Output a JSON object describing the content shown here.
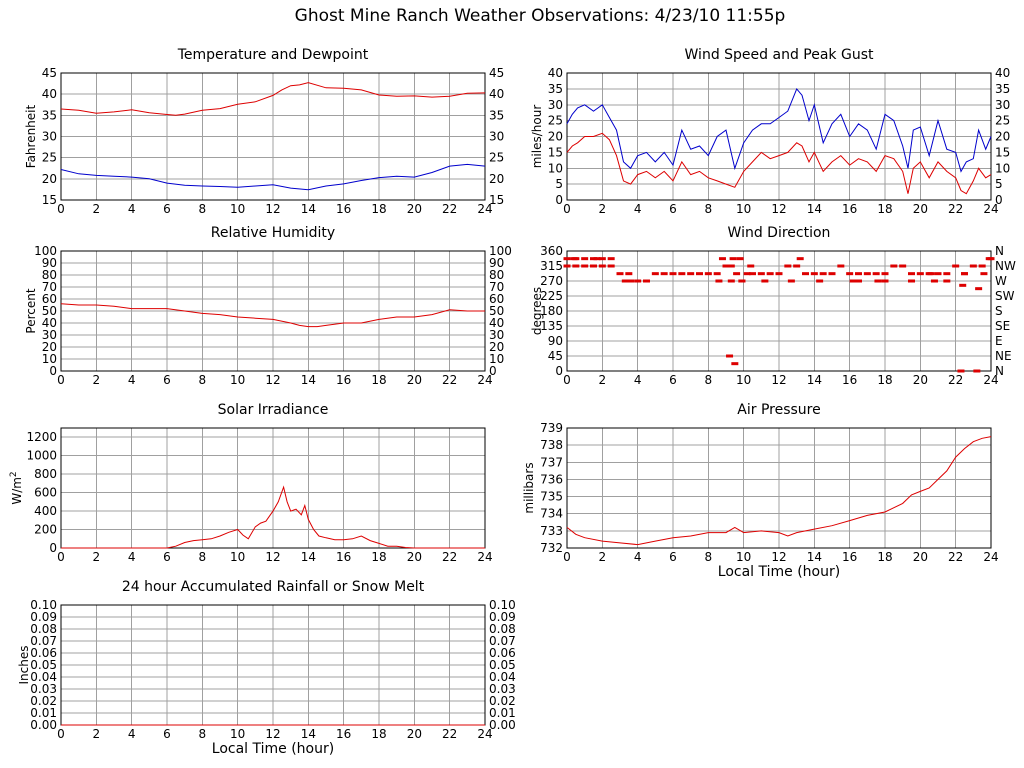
{
  "page": {
    "title": "Ghost Mine Ranch Weather Observations: 4/23/10 11:55p",
    "colors": {
      "primary_series": "#dd0000",
      "secondary_series": "#0000cc",
      "grid": "#a0a0a0"
    }
  },
  "chart_data": [
    {
      "id": "temp",
      "type": "line",
      "title": "Temperature and Dewpoint",
      "xlabel": "",
      "ylabel": "Fahrenheit",
      "xlim": [
        0,
        24
      ],
      "ylim": [
        15,
        45
      ],
      "xticks": [
        0,
        2,
        4,
        6,
        8,
        10,
        12,
        14,
        16,
        18,
        20,
        22,
        24
      ],
      "yticks": [
        15,
        20,
        25,
        30,
        35,
        40,
        45
      ],
      "right_ticks": [
        "15",
        "20",
        "25",
        "30",
        "35",
        "40",
        "45"
      ],
      "series": [
        {
          "name": "",
          "color": "#dd0000",
          "x": [
            0,
            1,
            2,
            3,
            4,
            5,
            6,
            6.5,
            7,
            8,
            9,
            10,
            11,
            12,
            12.5,
            13,
            13.5,
            14,
            15,
            16,
            17,
            18,
            19,
            20,
            21,
            22,
            23,
            24
          ],
          "y": [
            36.5,
            36.2,
            35.5,
            35.8,
            36.3,
            35.6,
            35.2,
            35.0,
            35.3,
            36.2,
            36.6,
            37.6,
            38.2,
            39.7,
            41.0,
            42.0,
            42.2,
            42.7,
            41.5,
            41.4,
            41.0,
            39.8,
            39.5,
            39.6,
            39.3,
            39.5,
            40.2,
            40.3
          ]
        },
        {
          "name": "",
          "color": "#0000cc",
          "x": [
            0,
            1,
            2,
            3,
            4,
            5,
            6,
            7,
            8,
            9,
            10,
            11,
            12,
            13,
            14,
            15,
            16,
            17,
            18,
            19,
            20,
            21,
            22,
            23,
            24
          ],
          "y": [
            22.2,
            21.2,
            20.8,
            20.6,
            20.4,
            20.0,
            19.0,
            18.5,
            18.3,
            18.2,
            18.0,
            18.3,
            18.6,
            17.8,
            17.4,
            18.3,
            18.8,
            19.6,
            20.3,
            20.6,
            20.4,
            21.5,
            23.0,
            23.4,
            23.0
          ]
        }
      ]
    },
    {
      "id": "wind",
      "type": "line",
      "title": "Wind Speed and Peak Gust",
      "xlabel": "",
      "ylabel": "miles/hour",
      "xlim": [
        0,
        24
      ],
      "ylim": [
        0,
        40
      ],
      "xticks": [
        0,
        2,
        4,
        6,
        8,
        10,
        12,
        14,
        16,
        18,
        20,
        22,
        24
      ],
      "yticks": [
        0,
        5,
        10,
        15,
        20,
        25,
        30,
        35,
        40
      ],
      "right_ticks": [
        "0",
        "5",
        "10",
        "15",
        "20",
        "25",
        "30",
        "35",
        "40"
      ],
      "series": [
        {
          "name": "",
          "color": "#0000cc",
          "x": [
            0,
            0.3,
            0.6,
            1,
            1.5,
            2,
            2.4,
            2.8,
            3.2,
            3.6,
            4,
            4.5,
            5,
            5.5,
            6,
            6.5,
            7,
            7.5,
            8,
            8.5,
            9,
            9.5,
            10,
            10.5,
            11,
            11.5,
            12,
            12.5,
            13,
            13.3,
            13.7,
            14,
            14.5,
            15,
            15.5,
            16,
            16.5,
            17,
            17.5,
            18,
            18.5,
            19,
            19.3,
            19.6,
            20,
            20.5,
            21,
            21.5,
            22,
            22.3,
            22.6,
            23,
            23.3,
            23.7,
            24
          ],
          "y": [
            24,
            27,
            29,
            30,
            28,
            30,
            26,
            22,
            12,
            10,
            14,
            15,
            12,
            15,
            11,
            22,
            16,
            17,
            14,
            20,
            22,
            10,
            18,
            22,
            24,
            24,
            26,
            28,
            35,
            33,
            25,
            30,
            18,
            24,
            27,
            20,
            24,
            22,
            16,
            27,
            25,
            17,
            10,
            22,
            23,
            14,
            25,
            16,
            15,
            9,
            12,
            13,
            22,
            16,
            20
          ]
        },
        {
          "name": "",
          "color": "#dd0000",
          "x": [
            0,
            0.3,
            0.6,
            1,
            1.5,
            2,
            2.4,
            2.8,
            3.2,
            3.6,
            4,
            4.5,
            5,
            5.5,
            6,
            6.5,
            7,
            7.5,
            8,
            8.5,
            9,
            9.5,
            10,
            10.5,
            11,
            11.5,
            12,
            12.5,
            13,
            13.3,
            13.7,
            14,
            14.5,
            15,
            15.5,
            16,
            16.5,
            17,
            17.5,
            18,
            18.5,
            19,
            19.3,
            19.6,
            20,
            20.5,
            21,
            21.5,
            22,
            22.3,
            22.6,
            23,
            23.3,
            23.7,
            24
          ],
          "y": [
            15,
            17,
            18,
            20,
            20,
            21,
            19,
            14,
            6,
            5,
            8,
            9,
            7,
            9,
            6,
            12,
            8,
            9,
            7,
            6,
            5,
            4,
            9,
            12,
            15,
            13,
            14,
            15,
            18,
            17,
            12,
            15,
            9,
            12,
            14,
            11,
            13,
            12,
            9,
            14,
            13,
            9,
            2,
            10,
            12,
            7,
            12,
            9,
            7,
            3,
            2,
            6,
            10,
            7,
            8
          ]
        }
      ]
    },
    {
      "id": "rh",
      "type": "line",
      "title": "Relative Humidity",
      "xlabel": "",
      "ylabel": "Percent",
      "xlim": [
        0,
        24
      ],
      "ylim": [
        0,
        100
      ],
      "xticks": [
        0,
        2,
        4,
        6,
        8,
        10,
        12,
        14,
        16,
        18,
        20,
        22,
        24
      ],
      "yticks": [
        0,
        10,
        20,
        30,
        40,
        50,
        60,
        70,
        80,
        90,
        100
      ],
      "right_ticks": [
        "0",
        "10",
        "20",
        "30",
        "40",
        "50",
        "60",
        "70",
        "80",
        "90",
        "100"
      ],
      "series": [
        {
          "name": "",
          "color": "#dd0000",
          "x": [
            0,
            1,
            2,
            3,
            4,
            5,
            6,
            7,
            8,
            9,
            10,
            11,
            12,
            13,
            13.5,
            14,
            14.5,
            15,
            16,
            17,
            18,
            19,
            20,
            21,
            22,
            23,
            24
          ],
          "y": [
            56,
            55,
            55,
            54,
            52,
            52,
            52,
            50,
            48,
            47,
            45,
            44,
            43,
            40,
            38,
            37,
            37,
            38,
            40,
            40,
            43,
            45,
            45,
            47,
            51,
            50,
            50
          ]
        }
      ]
    },
    {
      "id": "wdir",
      "type": "scatter",
      "title": "Wind Direction",
      "xlabel": "",
      "ylabel": "degrees",
      "xlim": [
        0,
        24
      ],
      "ylim": [
        0,
        360
      ],
      "xticks": [
        0,
        2,
        4,
        6,
        8,
        10,
        12,
        14,
        16,
        18,
        20,
        22,
        24
      ],
      "yticks": [
        0,
        45,
        90,
        135,
        180,
        225,
        270,
        315,
        360
      ],
      "right_ticks": [
        "N",
        "NE",
        "E",
        "SE",
        "S",
        "SW",
        "W",
        "NW",
        "N"
      ],
      "series": [
        {
          "name": "",
          "color": "#dd0000",
          "x": [
            0,
            0.5,
            1,
            1.5,
            2,
            2.5,
            0,
            0.5,
            1,
            1.5,
            2,
            2.5,
            3,
            3.5,
            4,
            4.5,
            5,
            5.5,
            6,
            6.5,
            7,
            7.5,
            8,
            8.5,
            9,
            9.3,
            9.6,
            9.9,
            10.2,
            10.5,
            11,
            11.5,
            12,
            12.5,
            13,
            13.5,
            14,
            14.5,
            15,
            15.5,
            16,
            16.5,
            17,
            17.5,
            18,
            18.5,
            19,
            19.5,
            20,
            20.5,
            21,
            21.5,
            22,
            22.5,
            23,
            23.5,
            24,
            8.8,
            9.3,
            9.9,
            10.4,
            12.7,
            14.3,
            16.2,
            18,
            20.8,
            21.5,
            22.4,
            23.3,
            9.2,
            9.5,
            22.3,
            23.2,
            3.3,
            3.6,
            8.6,
            9.4,
            11.2,
            16.5,
            17.6,
            19.5,
            20.6,
            22.5,
            23.6,
            0.4,
            1.7,
            23.9,
            13.2,
            9.8
          ],
          "y": [
            337,
            337,
            337,
            337,
            337,
            337,
            315,
            315,
            315,
            315,
            315,
            315,
            292,
            292,
            270,
            270,
            292,
            292,
            292,
            292,
            292,
            292,
            292,
            292,
            315,
            315,
            292,
            270,
            292,
            292,
            292,
            292,
            292,
            315,
            315,
            292,
            292,
            292,
            292,
            315,
            292,
            292,
            292,
            292,
            292,
            315,
            315,
            292,
            292,
            292,
            292,
            292,
            315,
            292,
            315,
            315,
            337,
            337,
            270,
            270,
            315,
            270,
            270,
            270,
            270,
            270,
            270,
            257,
            247,
            45,
            22,
            0,
            0,
            270,
            270,
            270,
            337,
            270,
            270,
            270,
            270,
            292,
            292,
            292,
            337,
            337,
            337,
            337,
            337
          ]
        }
      ]
    },
    {
      "id": "solar",
      "type": "line",
      "title": "Solar Irradiance",
      "xlabel": "",
      "ylabel": "W/m2",
      "xlim": [
        0,
        24
      ],
      "ylim": [
        0,
        1300
      ],
      "xticks": [
        0,
        2,
        4,
        6,
        8,
        10,
        12,
        14,
        16,
        18,
        20,
        22,
        24
      ],
      "yticks": [
        0,
        200,
        400,
        600,
        800,
        1000,
        1200
      ],
      "series": [
        {
          "name": "",
          "color": "#dd0000",
          "x": [
            0,
            6,
            6.5,
            7,
            7.5,
            8,
            8.5,
            9,
            9.5,
            10,
            10.3,
            10.6,
            11,
            11.3,
            11.6,
            12,
            12.3,
            12.6,
            12.8,
            13,
            13.3,
            13.6,
            13.8,
            14,
            14.3,
            14.6,
            15,
            15.5,
            16,
            16.5,
            17,
            17.5,
            18,
            18.5,
            19,
            19.5,
            20,
            21,
            22,
            23,
            24
          ],
          "y": [
            0,
            0,
            20,
            60,
            80,
            90,
            100,
            130,
            170,
            200,
            140,
            100,
            230,
            270,
            290,
            400,
            500,
            660,
            500,
            400,
            420,
            360,
            460,
            310,
            200,
            130,
            110,
            90,
            90,
            100,
            130,
            80,
            50,
            20,
            20,
            5,
            0,
            0,
            0,
            0,
            0
          ]
        }
      ]
    },
    {
      "id": "pressure",
      "type": "line",
      "title": "Air Pressure",
      "xlabel": "Local Time (hour)",
      "ylabel": "millibars",
      "xlim": [
        0,
        24
      ],
      "ylim": [
        732,
        739
      ],
      "xticks": [
        0,
        2,
        4,
        6,
        8,
        10,
        12,
        14,
        16,
        18,
        20,
        22,
        24
      ],
      "yticks": [
        732,
        733,
        734,
        735,
        736,
        737,
        738,
        739
      ],
      "series": [
        {
          "name": "",
          "color": "#dd0000",
          "x": [
            0,
            0.5,
            1,
            2,
            3,
            4,
            5,
            6,
            7,
            8,
            9,
            9.5,
            10,
            11,
            12,
            12.5,
            13,
            14,
            15,
            16,
            17,
            18,
            19,
            19.5,
            20,
            20.5,
            21,
            21.5,
            22,
            22.5,
            23,
            23.5,
            24
          ],
          "y": [
            733.2,
            732.8,
            732.6,
            732.4,
            732.3,
            732.2,
            732.4,
            732.6,
            732.7,
            732.9,
            732.9,
            733.2,
            732.9,
            733.0,
            732.9,
            732.7,
            732.9,
            733.1,
            733.3,
            733.6,
            733.9,
            734.1,
            734.6,
            735.1,
            735.3,
            735.5,
            736.0,
            736.5,
            737.3,
            737.8,
            738.2,
            738.4,
            738.5
          ]
        }
      ]
    },
    {
      "id": "rain",
      "type": "line",
      "title": "24 hour Accumulated Rainfall or Snow Melt",
      "xlabel": "Local Time (hour)",
      "ylabel": "Inches",
      "xlim": [
        0,
        24
      ],
      "ylim": [
        0,
        0.1
      ],
      "xticks": [
        0,
        2,
        4,
        6,
        8,
        10,
        12,
        14,
        16,
        18,
        20,
        22,
        24
      ],
      "yticks": [
        "0.00",
        "0.01",
        "0.02",
        "0.03",
        "0.04",
        "0.05",
        "0.06",
        "0.07",
        "0.08",
        "0.09",
        "0.10"
      ],
      "right_ticks": [
        "0.00",
        "0.01",
        "0.02",
        "0.03",
        "0.04",
        "0.05",
        "0.06",
        "0.07",
        "0.08",
        "0.09",
        "0.10"
      ],
      "series": [
        {
          "name": "",
          "color": "#dd0000",
          "x": [
            0,
            24
          ],
          "y": [
            0,
            0
          ]
        }
      ]
    }
  ]
}
